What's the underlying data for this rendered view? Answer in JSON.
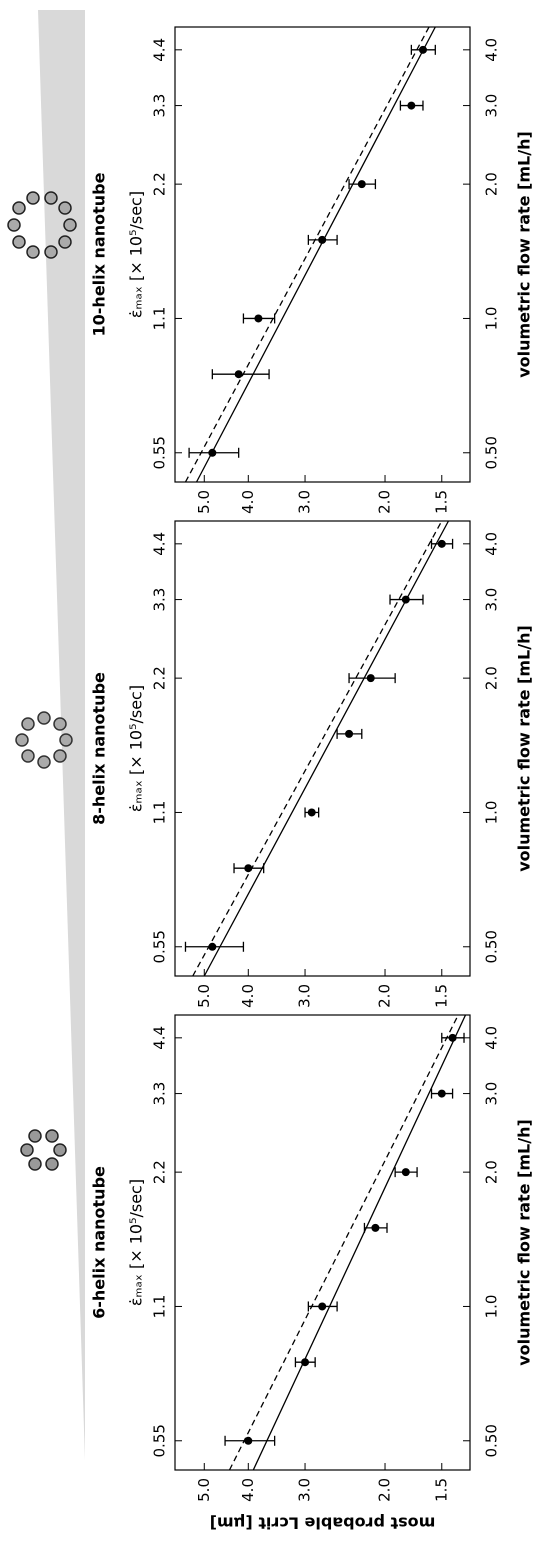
{
  "chart_data": [
    {
      "type": "scatter",
      "title": "6-helix nanotube",
      "x2label": "ε̇ₘₐₓ [× 10⁵/sec]",
      "xlabel": "volumetric flow rate [mL/h]",
      "ylabel": "most probable Lcrit [μm]",
      "x": [
        0.5,
        0.75,
        1.0,
        1.5,
        2.0,
        3.0,
        4.0
      ],
      "values": [
        4.0,
        3.0,
        2.75,
        2.1,
        1.8,
        1.5,
        1.42
      ],
      "errors": [
        0.5,
        0.15,
        0.2,
        0.12,
        0.1,
        0.08,
        0.08
      ],
      "color": "#000000",
      "fits": [
        {
          "dash": false,
          "x": [
            0.43,
            4.5
          ],
          "y": [
            3.9,
            1.33
          ]
        },
        {
          "dash": true,
          "x": [
            0.43,
            4.5
          ],
          "y": [
            4.4,
            1.38
          ]
        }
      ],
      "xlim": [
        0.43,
        4.5
      ],
      "xticks": [
        {
          "value": 0.5,
          "label": "0.50"
        },
        {
          "value": 1,
          "label": "1.0"
        },
        {
          "value": 2,
          "label": "2.0"
        },
        {
          "value": 3,
          "label": "3.0"
        },
        {
          "value": 4,
          "label": "4.0"
        }
      ],
      "x2lim": [
        0.473,
        4.95
      ],
      "x2ticks": [
        0.55,
        1.1,
        2.2,
        3.3,
        4.4
      ],
      "ylim": [
        1.3,
        5.8
      ],
      "yticks": [
        {
          "value": 5,
          "label": "5.0"
        },
        {
          "value": 4,
          "label": "4.0"
        },
        {
          "value": 3,
          "label": "3.0"
        },
        {
          "value": 2,
          "label": "2.0"
        },
        1.5
      ],
      "log": true
    },
    {
      "type": "scatter",
      "title": "8-helix nanotube",
      "x2label": "ε̇ₘₐₓ [× 10⁵/sec]",
      "xlabel": "volumetric flow rate [mL/h]",
      "x": [
        0.5,
        0.75,
        1.0,
        1.5,
        2.0,
        3.0,
        4.0
      ],
      "values": [
        4.8,
        4.0,
        2.9,
        2.4,
        2.15,
        1.8,
        1.5
      ],
      "errors": [
        0.7,
        0.3,
        0.1,
        0.15,
        0.25,
        0.15,
        0.08
      ],
      "color": "#000000",
      "fits": [
        {
          "dash": false,
          "x": [
            0.43,
            4.5
          ],
          "y": [
            5.0,
            1.45
          ]
        },
        {
          "dash": true,
          "x": [
            0.43,
            4.5
          ],
          "y": [
            5.3,
            1.5
          ]
        }
      ],
      "xlim": [
        0.43,
        4.5
      ],
      "xticks": [
        {
          "value": 0.5,
          "label": "0.50"
        },
        {
          "value": 1,
          "label": "1.0"
        },
        {
          "value": 2,
          "label": "2.0"
        },
        {
          "value": 3,
          "label": "3.0"
        },
        {
          "value": 4,
          "label": "4.0"
        }
      ],
      "x2lim": [
        0.473,
        4.95
      ],
      "x2ticks": [
        0.55,
        1.1,
        2.2,
        3.3,
        4.4
      ],
      "ylim": [
        1.3,
        5.8
      ],
      "yticks": [
        {
          "value": 5,
          "label": "5.0"
        },
        {
          "value": 4,
          "label": "4.0"
        },
        {
          "value": 3,
          "label": "3.0"
        },
        {
          "value": 2,
          "label": "2.0"
        },
        1.5
      ],
      "log": true
    },
    {
      "type": "scatter",
      "title": "10-helix nanotube",
      "x2label": "ε̇ₘₐₓ [× 10⁵/sec]",
      "xlabel": "volumetric flow rate [mL/h]",
      "x": [
        0.5,
        0.75,
        1.0,
        1.5,
        2.0,
        3.0,
        4.0
      ],
      "values": [
        4.8,
        4.2,
        3.8,
        2.75,
        2.25,
        1.75,
        1.65
      ],
      "errors": [
        0.6,
        0.6,
        0.3,
        0.2,
        0.15,
        0.1,
        0.1
      ],
      "color": "#000000",
      "fits": [
        {
          "dash": false,
          "x": [
            0.43,
            4.5
          ],
          "y": [
            5.2,
            1.55
          ]
        },
        {
          "dash": true,
          "x": [
            0.43,
            4.5
          ],
          "y": [
            5.5,
            1.6
          ]
        }
      ],
      "xlim": [
        0.43,
        4.5
      ],
      "xticks": [
        {
          "value": 0.5,
          "label": "0.50"
        },
        {
          "value": 1,
          "label": "1.0"
        },
        {
          "value": 2,
          "label": "2.0"
        },
        {
          "value": 3,
          "label": "3.0"
        },
        {
          "value": 4,
          "label": "4.0"
        }
      ],
      "x2lim": [
        0.473,
        4.95
      ],
      "x2ticks": [
        0.55,
        1.1,
        2.2,
        3.3,
        4.4
      ],
      "ylim": [
        1.3,
        5.8
      ],
      "yticks": [
        {
          "value": 5,
          "label": "5.0"
        },
        {
          "value": 4,
          "label": "4.0"
        },
        {
          "value": 3,
          "label": "3.0"
        },
        {
          "value": 2,
          "label": "2.0"
        },
        1.5
      ],
      "log": true
    }
  ]
}
